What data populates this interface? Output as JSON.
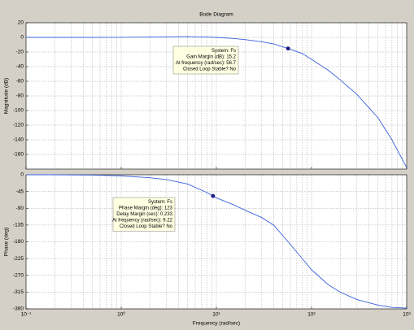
{
  "chart_data": [
    {
      "type": "line",
      "title": "Bode Diagram",
      "y_label": "Magnitude (dB)",
      "xscale": "log",
      "xlim": [
        0.1,
        1000
      ],
      "xticks": [
        {
          "value": 0.1,
          "label": "10⁻¹"
        },
        {
          "value": 1,
          "label": "10⁰"
        },
        {
          "value": 10,
          "label": "10¹"
        },
        {
          "value": 100,
          "label": "10²"
        },
        {
          "value": 1000,
          "label": "10³"
        }
      ],
      "ylim": [
        -180,
        20
      ],
      "yticks": [
        20,
        0,
        -20,
        -40,
        -60,
        -80,
        -100,
        -120,
        -140,
        -160
      ],
      "grid": true,
      "color": "#3a5fe0",
      "x": [
        0.1,
        0.2,
        0.5,
        1,
        2,
        3,
        5,
        8,
        10,
        15,
        20,
        30,
        40,
        56.7,
        80,
        100,
        150,
        200,
        300,
        500,
        700,
        1000
      ],
      "values": [
        0,
        0,
        0,
        0.1,
        0.5,
        0.8,
        1,
        0.5,
        0,
        -1.5,
        -3,
        -6,
        -9,
        -15.2,
        -22,
        -30,
        -45,
        -58,
        -78,
        -110,
        -140,
        -178
      ],
      "annotation": {
        "x": 56.7,
        "y": -15.2,
        "lines": [
          "System: Fs",
          "Gain Margin (dB): 15.2",
          "At frequency (rad/sec): 56.7",
          "Closed Loop Stable? No"
        ]
      }
    },
    {
      "type": "line",
      "y_label": "Phase (deg)",
      "x_label": "Frequency (rad/sec)",
      "xscale": "log",
      "xlim": [
        0.1,
        1000
      ],
      "xticks": [
        {
          "value": 0.1,
          "label": "10⁻¹"
        },
        {
          "value": 1,
          "label": "10⁰"
        },
        {
          "value": 10,
          "label": "10¹"
        },
        {
          "value": 100,
          "label": "10²"
        },
        {
          "value": 1000,
          "label": "10³"
        }
      ],
      "ylim": [
        -360,
        0
      ],
      "yticks": [
        0,
        -45,
        -90,
        -135,
        -180,
        -225,
        -270,
        -315,
        -360
      ],
      "grid": true,
      "color": "#3a5fe0",
      "x": [
        0.1,
        0.2,
        0.5,
        1,
        2,
        3,
        5,
        8,
        9.22,
        10,
        15,
        20,
        30,
        40,
        56.7,
        80,
        100,
        150,
        200,
        300,
        500,
        700,
        1000
      ],
      "values": [
        0,
        0,
        -1,
        -3,
        -8,
        -13,
        -25,
        -48,
        -57,
        -62,
        -80,
        -95,
        -115,
        -135,
        -180,
        -225,
        -255,
        -295,
        -315,
        -335,
        -350,
        -356,
        -358
      ],
      "annotation": {
        "x": 9.22,
        "y": -57,
        "lines": [
          "System: Fs",
          "Phase Margin (deg): 123",
          "Delay Margin (sec): 0.233",
          "At frequency (rad/sec): 9.22",
          "Closed Loop Stable? No"
        ]
      }
    }
  ]
}
